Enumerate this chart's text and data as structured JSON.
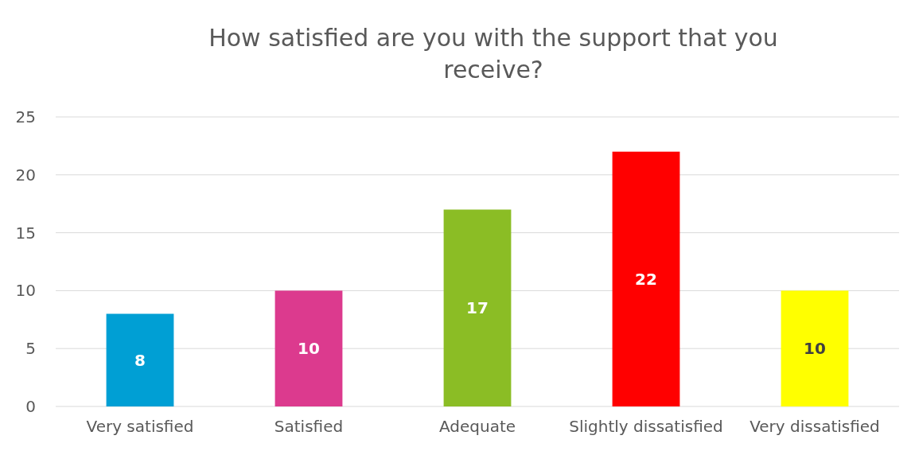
{
  "chart_data": {
    "type": "bar",
    "title": "How satisfied are you with the support that you receive?",
    "categories": [
      "Very satisfied",
      "Satisfied",
      "Adequate",
      "Slightly dissatisfied",
      "Very dissatisfied"
    ],
    "values": [
      8,
      10,
      17,
      22,
      10
    ],
    "colors": [
      "#009fd4",
      "#dc3a8e",
      "#8bbd25",
      "#ff0000",
      "#ffff00"
    ],
    "ylim": [
      0,
      25
    ],
    "yticks": [
      0,
      5,
      10,
      15,
      20,
      25
    ],
    "grid": "y",
    "data_labels": true
  }
}
